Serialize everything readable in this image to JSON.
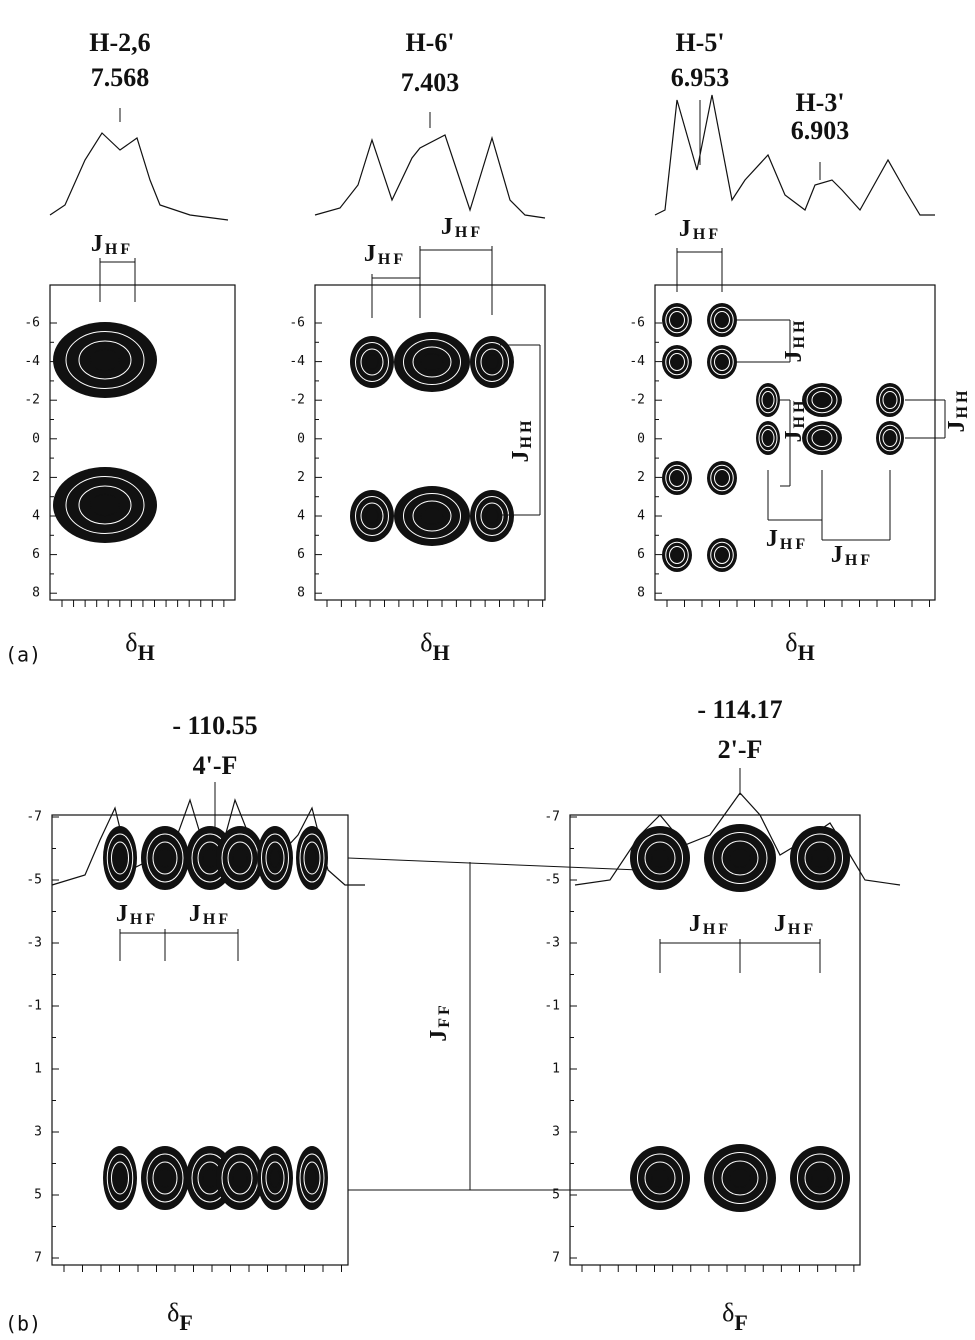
{
  "figure_labels": [
    "(a)",
    "(b)"
  ],
  "panels": [
    {
      "peak_labels": [
        [
          "H-2,6",
          "7.568"
        ]
      ],
      "yticks": [
        "-6",
        "-4",
        "-2",
        "0",
        "2",
        "4",
        "6",
        "8"
      ],
      "xlabel": {
        "symbol": "δ",
        "sub": "H"
      },
      "couplings": [
        {
          "main": "J",
          "sub": "HF"
        }
      ]
    },
    {
      "peak_labels": [
        [
          "H-6'",
          "7.403"
        ]
      ],
      "yticks": [
        "-6",
        "-4",
        "-2",
        "0",
        "2",
        "4",
        "6",
        "8"
      ],
      "xlabel": {
        "symbol": "δ",
        "sub": "H"
      },
      "couplings": [
        {
          "main": "J",
          "sub": "HF"
        },
        {
          "main": "J",
          "sub": "HF"
        },
        {
          "main": "J",
          "sub": "HH"
        }
      ]
    },
    {
      "peak_labels": [
        [
          "H-5'",
          "6.953"
        ],
        [
          "H-3'",
          "6.903"
        ]
      ],
      "yticks": [
        "-6",
        "-4",
        "-2",
        "0",
        "2",
        "4",
        "6",
        "8"
      ],
      "xlabel": {
        "symbol": "δ",
        "sub": "H"
      },
      "couplings": [
        {
          "main": "J",
          "sub": "HF"
        },
        {
          "main": "J",
          "sub": "HH"
        },
        {
          "main": "J",
          "sub": "HH"
        },
        {
          "main": "J",
          "sub": "HH"
        },
        {
          "main": "J",
          "sub": "HF"
        },
        {
          "main": "J",
          "sub": "HF"
        }
      ]
    },
    {
      "peak_labels": [
        [
          "- 110.55",
          "4'-F"
        ]
      ],
      "yticks": [
        "-7",
        "-5",
        "-3",
        "-1",
        "1",
        "3",
        "5",
        "7"
      ],
      "xlabel": {
        "symbol": "δ",
        "sub": "F"
      },
      "couplings": [
        {
          "main": "J",
          "sub": "HF"
        },
        {
          "main": "J",
          "sub": "HF"
        }
      ]
    },
    {
      "peak_labels": [
        [
          "- 114.17",
          "2'-F"
        ]
      ],
      "yticks": [
        "-7",
        "-5",
        "-3",
        "-1",
        "1",
        "3",
        "5",
        "7"
      ],
      "xlabel": {
        "symbol": "δ",
        "sub": "F"
      },
      "couplings": [
        {
          "main": "J",
          "sub": "HF"
        },
        {
          "main": "J",
          "sub": "HF"
        }
      ]
    }
  ],
  "ff_coupling": {
    "main": "J",
    "sub": "FF"
  }
}
